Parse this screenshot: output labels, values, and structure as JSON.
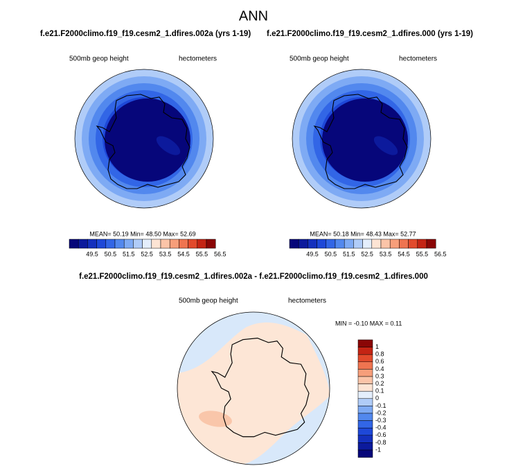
{
  "header": {
    "title": "ANN"
  },
  "panels": [
    {
      "title": "f.e21.F2000climo.f19_f19.cesm2_1.dfires.002a (yrs 1-19)",
      "left_label": "500mb geop height",
      "right_label": "hectometers",
      "stats": "MEAN=  50.19  Min=  48.50  Max=  52.69"
    },
    {
      "title": "f.e21.F2000climo.f19_f19.cesm2_1.dfires.000 (yrs 1-19)",
      "left_label": "500mb geop height",
      "right_label": "hectometers",
      "stats": "MEAN=  50.18  Min=  48.43  Max=  52.77"
    }
  ],
  "colorbar": {
    "labels": [
      "49.5",
      "50.5",
      "51.5",
      "52.5",
      "53.5",
      "54.5",
      "55.5",
      "56.5"
    ],
    "colors": [
      "#06067a",
      "#0c1a9c",
      "#1430bd",
      "#1e48d8",
      "#3266e6",
      "#5288ee",
      "#7eaaf4",
      "#b0ccf8",
      "#e4eefc",
      "#fde4d4",
      "#fbc4a8",
      "#f79e7a",
      "#ef7450",
      "#e24a2c",
      "#c42414",
      "#8a0606"
    ]
  },
  "difference": {
    "title": "f.e21.F2000climo.f19_f19.cesm2_1.dfires.002a - f.e21.F2000climo.f19_f19.cesm2_1.dfires.000",
    "left_label": "500mb geop height",
    "right_label": "hectometers",
    "stats": "MIN =  -0.10 MAX =   0.11",
    "colorbar_labels": [
      "1",
      "0.8",
      "0.6",
      "0.4",
      "0.3",
      "0.2",
      "0.1",
      "0",
      "-0.1",
      "-0.2",
      "-0.3",
      "-0.4",
      "-0.6",
      "-0.8",
      "-1"
    ]
  }
}
